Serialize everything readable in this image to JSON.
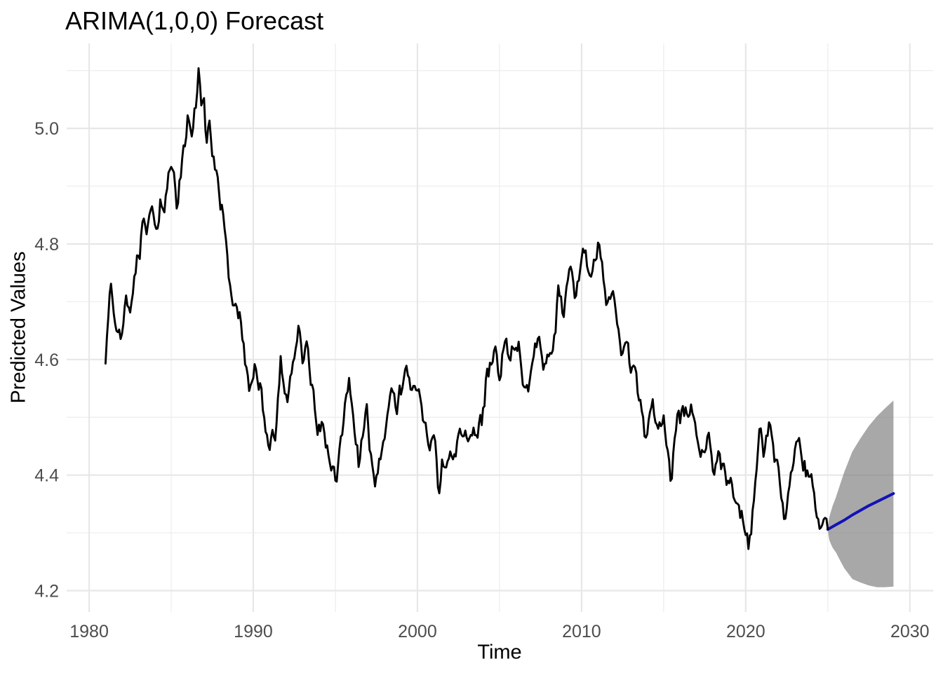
{
  "chart_data": {
    "type": "line",
    "title": "ARIMA(1,0,0) Forecast",
    "xlabel": "Time",
    "ylabel": "Predicted Values",
    "grid": true,
    "legend": "none",
    "background": "#ffffff",
    "xlim": [
      1978.63,
      2031.42
    ],
    "ylim": [
      4.163,
      5.147
    ],
    "x_ticks": [
      {
        "value": 1980,
        "label": "1980"
      },
      {
        "value": 1990,
        "label": "1990"
      },
      {
        "value": 2000,
        "label": "2000"
      },
      {
        "value": 2010,
        "label": "2010"
      },
      {
        "value": 2020,
        "label": "2020"
      },
      {
        "value": 2030,
        "label": "2030"
      }
    ],
    "x_minor_ticks": [
      1985,
      1995,
      2005,
      2015,
      2025
    ],
    "y_ticks": [
      {
        "value": 5.0,
        "label": "5.0"
      },
      {
        "value": 4.8,
        "label": "4.8"
      },
      {
        "value": 4.6,
        "label": "4.6"
      },
      {
        "value": 4.4,
        "label": "4.4"
      },
      {
        "value": 4.2,
        "label": "4.2"
      }
    ],
    "y_minor_ticks": [
      5.1,
      4.9,
      4.7,
      4.5,
      4.3
    ],
    "colors": {
      "observed_line": "#000000",
      "forecast_line": "#1212b7",
      "ci_ribbon": "#7f7f7f",
      "ci_ribbon_alpha": 0.68,
      "grid_major": "#e7e7e7",
      "grid_minor": "#efefef",
      "tick_label": "#4d4d4d",
      "title_text": "#000000"
    },
    "series": [
      {
        "name": "observed",
        "description": "Historical monthly series 1981-2025 (keypoints sampled from plot)",
        "x": [
          1981.0,
          1981.15,
          1981.3,
          1981.5,
          1981.75,
          1981.95,
          1982.2,
          1982.45,
          1982.7,
          1982.95,
          1983.1,
          1983.3,
          1983.5,
          1983.8,
          1984.05,
          1984.4,
          1984.6,
          1984.85,
          1985.1,
          1985.35,
          1985.7,
          1986.0,
          1986.2,
          1986.45,
          1986.67,
          1986.85,
          1987.0,
          1987.15,
          1987.3,
          1987.5,
          1987.75,
          1988.1,
          1988.45,
          1988.7,
          1988.95,
          1989.2,
          1989.5,
          1989.8,
          1990.1,
          1990.45,
          1990.8,
          1991.0,
          1991.2,
          1991.35,
          1991.65,
          1991.9,
          1992.1,
          1992.5,
          1992.8,
          1993.0,
          1993.2,
          1993.55,
          1993.9,
          1994.2,
          1994.55,
          1994.8,
          1995.0,
          1995.35,
          1995.8,
          1996.1,
          1996.45,
          1996.9,
          1997.1,
          1997.4,
          1997.75,
          1998.1,
          1998.45,
          1998.7,
          1999.0,
          1999.4,
          1999.75,
          2000.1,
          2000.5,
          2000.85,
          2001.1,
          2001.3,
          2001.55,
          2001.8,
          2002.1,
          2002.45,
          2002.9,
          2003.2,
          2003.6,
          2003.95,
          2004.2,
          2004.7,
          2005.0,
          2005.3,
          2005.6,
          2005.9,
          2006.15,
          2006.45,
          2006.8,
          2007.1,
          2007.4,
          2007.8,
          2008.1,
          2008.4,
          2008.6,
          2008.9,
          2009.3,
          2009.6,
          2009.9,
          2010.2,
          2010.6,
          2011.0,
          2011.3,
          2011.6,
          2011.9,
          2012.2,
          2012.5,
          2012.75,
          2013.0,
          2013.2,
          2013.6,
          2013.9,
          2014.3,
          2014.7,
          2015.0,
          2015.4,
          2015.9,
          2016.3,
          2016.6,
          2017.0,
          2017.3,
          2017.7,
          2018.0,
          2018.4,
          2018.8,
          2019.1,
          2019.5,
          2019.8,
          2020.05,
          2020.2,
          2020.5,
          2020.85,
          2021.1,
          2021.4,
          2021.7,
          2021.95,
          2022.3,
          2022.6,
          2022.9,
          2023.1,
          2023.4,
          2023.7,
          2023.95,
          2024.2,
          2024.5,
          2024.7,
          2024.85,
          2025.0
        ],
        "y": [
          4.593,
          4.67,
          4.745,
          4.66,
          4.65,
          4.645,
          4.705,
          4.69,
          4.73,
          4.77,
          4.79,
          4.835,
          4.81,
          4.85,
          4.825,
          4.88,
          4.855,
          4.905,
          4.925,
          4.87,
          4.95,
          5.01,
          4.975,
          5.03,
          5.103,
          5.04,
          5.05,
          4.98,
          5.015,
          4.96,
          4.92,
          4.858,
          4.78,
          4.68,
          4.7,
          4.67,
          4.6,
          4.55,
          4.6,
          4.55,
          4.47,
          4.445,
          4.46,
          4.44,
          4.6,
          4.56,
          4.52,
          4.6,
          4.66,
          4.59,
          4.63,
          4.55,
          4.48,
          4.5,
          4.44,
          4.41,
          4.39,
          4.45,
          4.57,
          4.5,
          4.42,
          4.51,
          4.44,
          4.36,
          4.43,
          4.5,
          4.545,
          4.52,
          4.55,
          4.57,
          4.55,
          4.565,
          4.48,
          4.46,
          4.44,
          4.37,
          4.43,
          4.4,
          4.44,
          4.46,
          4.49,
          4.465,
          4.48,
          4.49,
          4.565,
          4.62,
          4.56,
          4.63,
          4.6,
          4.62,
          4.63,
          4.52,
          4.555,
          4.6,
          4.65,
          4.58,
          4.62,
          4.66,
          4.72,
          4.685,
          4.77,
          4.71,
          4.74,
          4.79,
          4.73,
          4.79,
          4.755,
          4.69,
          4.7,
          4.66,
          4.61,
          4.63,
          4.585,
          4.6,
          4.52,
          4.47,
          4.52,
          4.49,
          4.5,
          4.39,
          4.5,
          4.505,
          4.525,
          4.46,
          4.43,
          4.465,
          4.42,
          4.43,
          4.4,
          4.388,
          4.36,
          4.33,
          4.285,
          4.273,
          4.35,
          4.477,
          4.44,
          4.49,
          4.43,
          4.4,
          4.322,
          4.36,
          4.42,
          4.48,
          4.44,
          4.405,
          4.39,
          4.36,
          4.33,
          4.31,
          4.33,
          4.306
        ]
      },
      {
        "name": "forecast",
        "description": "ARIMA(1,0,0) mean forecast 2025-2029",
        "x": [
          2025.0,
          2025.5,
          2026.0,
          2026.5,
          2027.0,
          2027.5,
          2028.0,
          2028.5,
          2029.0
        ],
        "y": [
          4.306,
          4.314,
          4.322,
          4.331,
          4.339,
          4.347,
          4.354,
          4.361,
          4.368
        ]
      }
    ],
    "ci_ribbon": {
      "name": "forecast-interval",
      "x": [
        2025.0,
        2025.05,
        2025.1,
        2025.2,
        2025.3,
        2025.5,
        2025.75,
        2026.0,
        2026.5,
        2027.0,
        2027.5,
        2028.0,
        2028.5,
        2029.0
      ],
      "upper": [
        4.306,
        4.32,
        4.328,
        4.338,
        4.347,
        4.362,
        4.384,
        4.405,
        4.441,
        4.464,
        4.485,
        4.502,
        4.516,
        4.529
      ],
      "lower": [
        4.306,
        4.294,
        4.287,
        4.28,
        4.274,
        4.266,
        4.252,
        4.239,
        4.22,
        4.214,
        4.209,
        4.206,
        4.206,
        4.207
      ]
    }
  }
}
